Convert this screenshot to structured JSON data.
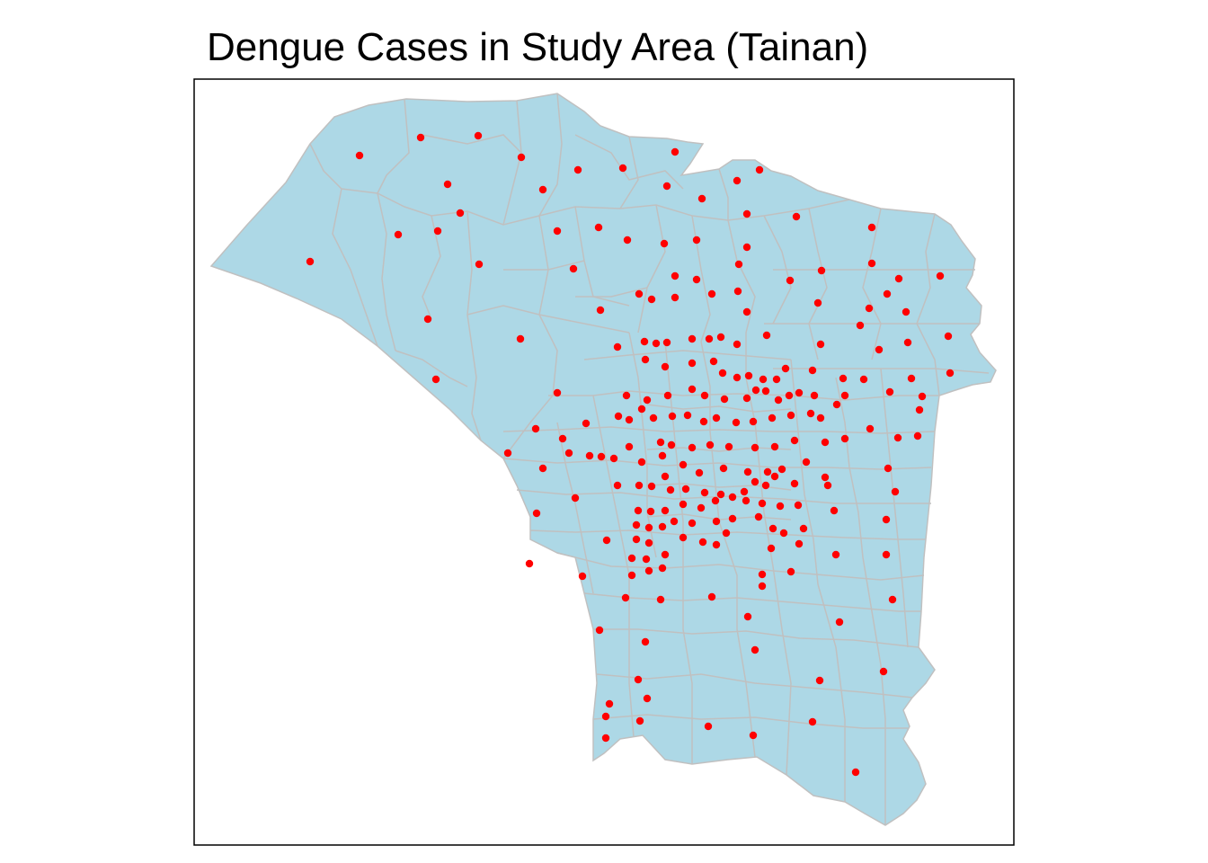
{
  "title": "Dengue Cases in Study Area (Tainan)",
  "colors": {
    "region_fill": "#add8e6",
    "region_border": "#c0c0c0",
    "case_point": "#ff0000",
    "frame": "#000000",
    "background": "#ffffff"
  },
  "map": {
    "panel_border": true,
    "layers": [
      {
        "name": "village-boundaries",
        "type": "polygon"
      },
      {
        "name": "dengue-cases",
        "type": "point",
        "count": 250
      }
    ]
  }
}
